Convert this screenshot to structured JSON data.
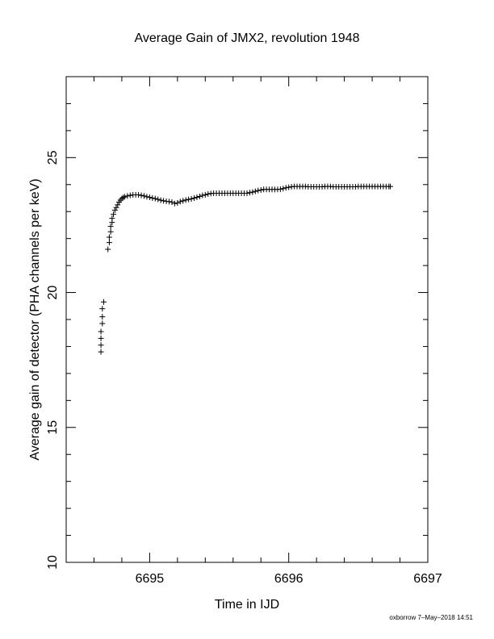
{
  "footer": "oxborrow  7–May–2018 14:51",
  "chart_data": {
    "type": "scatter",
    "title": "Average Gain of JMX2, revolution 1948",
    "xlabel": "Time in IJD",
    "ylabel": "Average gain of detector (PHA channels per keV)",
    "xlim": [
      6694.4,
      6697
    ],
    "ylim": [
      10,
      28
    ],
    "x_ticks": [
      6695,
      6696,
      6697
    ],
    "x_tick_labels": [
      "6695",
      "6696",
      "6697"
    ],
    "y_ticks": [
      10,
      15,
      20,
      25
    ],
    "y_tick_labels": [
      "10",
      "15",
      "20",
      "25"
    ],
    "x_minor_step": 0.2,
    "y_minor_step": 1,
    "marker": "plus",
    "color": "#000000",
    "grid": false,
    "series": [
      {
        "points": [
          [
            6694.65,
            17.8
          ],
          [
            6694.65,
            18.05
          ],
          [
            6694.65,
            18.3
          ],
          [
            6694.65,
            18.55
          ],
          [
            6694.66,
            18.85
          ],
          [
            6694.66,
            19.1
          ],
          [
            6694.66,
            19.4
          ],
          [
            6694.67,
            19.65
          ],
          [
            6694.7,
            21.6
          ],
          [
            6694.71,
            21.85
          ],
          [
            6694.71,
            22.05
          ],
          [
            6694.72,
            22.25
          ],
          [
            6694.72,
            22.45
          ],
          [
            6694.73,
            22.6
          ],
          [
            6694.73,
            22.75
          ],
          [
            6694.74,
            22.9
          ],
          [
            6694.75,
            23.05
          ],
          [
            6694.76,
            23.15
          ],
          [
            6694.77,
            23.25
          ],
          [
            6694.78,
            23.35
          ],
          [
            6694.79,
            23.42
          ],
          [
            6694.8,
            23.48
          ],
          [
            6694.81,
            23.52
          ],
          [
            6694.82,
            23.55
          ],
          [
            6694.84,
            23.58
          ],
          [
            6694.86,
            23.6
          ],
          [
            6694.88,
            23.62
          ],
          [
            6694.9,
            23.62
          ],
          [
            6694.92,
            23.62
          ],
          [
            6694.94,
            23.6
          ],
          [
            6694.96,
            23.58
          ],
          [
            6694.98,
            23.55
          ],
          [
            6695.0,
            23.53
          ],
          [
            6695.02,
            23.5
          ],
          [
            6695.04,
            23.48
          ],
          [
            6695.06,
            23.45
          ],
          [
            6695.08,
            23.42
          ],
          [
            6695.1,
            23.4
          ],
          [
            6695.12,
            23.38
          ],
          [
            6695.14,
            23.37
          ],
          [
            6695.16,
            23.35
          ],
          [
            6695.18,
            23.3
          ],
          [
            6695.2,
            23.32
          ],
          [
            6695.22,
            23.37
          ],
          [
            6695.24,
            23.4
          ],
          [
            6695.26,
            23.43
          ],
          [
            6695.28,
            23.45
          ],
          [
            6695.3,
            23.47
          ],
          [
            6695.32,
            23.5
          ],
          [
            6695.34,
            23.53
          ],
          [
            6695.36,
            23.56
          ],
          [
            6695.38,
            23.6
          ],
          [
            6695.4,
            23.62
          ],
          [
            6695.42,
            23.65
          ],
          [
            6695.44,
            23.67
          ],
          [
            6695.46,
            23.68
          ],
          [
            6695.48,
            23.68
          ],
          [
            6695.5,
            23.68
          ],
          [
            6695.52,
            23.68
          ],
          [
            6695.54,
            23.68
          ],
          [
            6695.56,
            23.68
          ],
          [
            6695.58,
            23.68
          ],
          [
            6695.6,
            23.68
          ],
          [
            6695.62,
            23.68
          ],
          [
            6695.64,
            23.68
          ],
          [
            6695.66,
            23.68
          ],
          [
            6695.68,
            23.68
          ],
          [
            6695.7,
            23.68
          ],
          [
            6695.72,
            23.7
          ],
          [
            6695.74,
            23.72
          ],
          [
            6695.76,
            23.75
          ],
          [
            6695.78,
            23.78
          ],
          [
            6695.8,
            23.8
          ],
          [
            6695.82,
            23.82
          ],
          [
            6695.84,
            23.82
          ],
          [
            6695.86,
            23.82
          ],
          [
            6695.88,
            23.82
          ],
          [
            6695.9,
            23.82
          ],
          [
            6695.92,
            23.82
          ],
          [
            6695.94,
            23.83
          ],
          [
            6695.96,
            23.85
          ],
          [
            6695.98,
            23.88
          ],
          [
            6696.0,
            23.9
          ],
          [
            6696.02,
            23.92
          ],
          [
            6696.04,
            23.93
          ],
          [
            6696.06,
            23.93
          ],
          [
            6696.08,
            23.93
          ],
          [
            6696.1,
            23.93
          ],
          [
            6696.12,
            23.93
          ],
          [
            6696.14,
            23.92
          ],
          [
            6696.16,
            23.92
          ],
          [
            6696.18,
            23.92
          ],
          [
            6696.2,
            23.92
          ],
          [
            6696.22,
            23.92
          ],
          [
            6696.24,
            23.92
          ],
          [
            6696.26,
            23.93
          ],
          [
            6696.28,
            23.93
          ],
          [
            6696.3,
            23.93
          ],
          [
            6696.32,
            23.92
          ],
          [
            6696.34,
            23.92
          ],
          [
            6696.36,
            23.92
          ],
          [
            6696.38,
            23.92
          ],
          [
            6696.4,
            23.92
          ],
          [
            6696.42,
            23.92
          ],
          [
            6696.44,
            23.92
          ],
          [
            6696.46,
            23.92
          ],
          [
            6696.48,
            23.92
          ],
          [
            6696.5,
            23.93
          ],
          [
            6696.52,
            23.93
          ],
          [
            6696.54,
            23.93
          ],
          [
            6696.56,
            23.93
          ],
          [
            6696.58,
            23.93
          ],
          [
            6696.6,
            23.93
          ],
          [
            6696.62,
            23.93
          ],
          [
            6696.64,
            23.93
          ],
          [
            6696.66,
            23.93
          ],
          [
            6696.68,
            23.93
          ],
          [
            6696.7,
            23.93
          ],
          [
            6696.72,
            23.93
          ],
          [
            6696.73,
            23.93
          ]
        ]
      }
    ]
  }
}
